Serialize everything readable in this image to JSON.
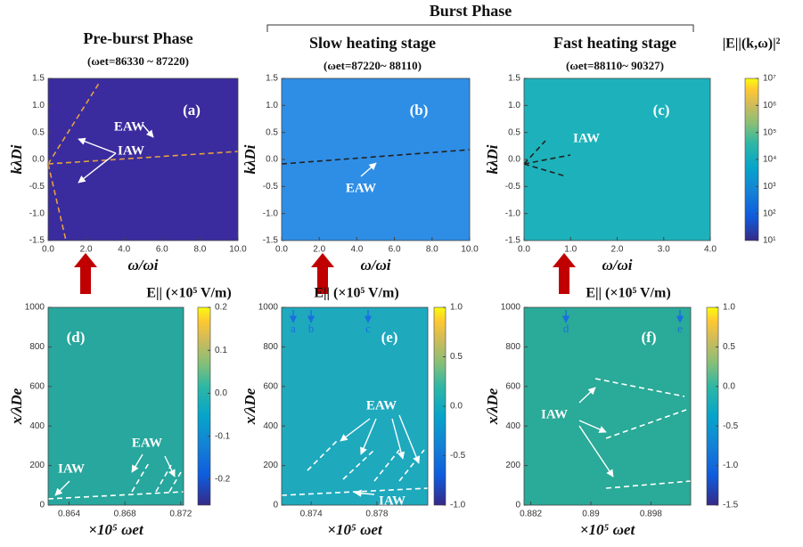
{
  "figure": {
    "group_title": "Burst Phase"
  },
  "chart_data": [
    {
      "type": "heatmap",
      "title": "Pre-burst Phase",
      "subtitle": "(ωet=86330 ~ 87220)",
      "panel_label": "(a)",
      "color": "#3a2c9e",
      "xlabel": "ω/ωi",
      "ylabel": "kλDi",
      "xlim": [
        0,
        10
      ],
      "xticks": [
        {
          "value": 0,
          "label": "0.0"
        },
        {
          "value": 2,
          "label": "2.0"
        },
        {
          "value": 4,
          "label": "4.0"
        },
        {
          "value": 6,
          "label": "6.0"
        },
        {
          "value": 8,
          "label": "8.0"
        },
        {
          "value": 10,
          "label": "10.0"
        }
      ],
      "ylim": [
        -1.5,
        1.5
      ],
      "yticks": [
        -1.5,
        {
          "value": -1,
          "label": "-1.0"
        },
        -0.5,
        {
          "value": 0,
          "label": "0.0"
        },
        0.5,
        {
          "value": 1,
          "label": "1.0"
        },
        1.5
      ],
      "annotations": [
        "EAW",
        "IAW"
      ]
    },
    {
      "type": "heatmap",
      "title": "Slow heating stage",
      "subtitle": "(ωet=87220~ 88110)",
      "panel_label": "(b)",
      "color": "#2e8ee6",
      "xlabel": "ω/ωi",
      "ylabel": "kλDi",
      "xlim": [
        0,
        10
      ],
      "xticks": [
        {
          "value": 0,
          "label": "0.0"
        },
        {
          "value": 2,
          "label": "2.0"
        },
        {
          "value": 4,
          "label": "4.0"
        },
        {
          "value": 6,
          "label": "6.0"
        },
        {
          "value": 8,
          "label": "8.0"
        },
        {
          "value": 10,
          "label": "10.0"
        }
      ],
      "ylim": [
        -1.5,
        1.5
      ],
      "yticks": [
        -1.5,
        {
          "value": -1,
          "label": "-1.0"
        },
        -0.5,
        {
          "value": 0,
          "label": "0.0"
        },
        0.5,
        {
          "value": 1,
          "label": "1.0"
        },
        1.5
      ],
      "annotations": [
        "EAW"
      ]
    },
    {
      "type": "heatmap",
      "title": "Fast heating stage",
      "subtitle": "(ωet=88110~ 90327)",
      "panel_label": "(c)",
      "color": "#1db2bb",
      "xlabel": "ω/ωi",
      "ylabel": "kλDi",
      "xlim": [
        0,
        4
      ],
      "xticks": [
        {
          "value": 0,
          "label": "0.0"
        },
        {
          "value": 1,
          "label": "1.0"
        },
        {
          "value": 2,
          "label": "2.0"
        },
        {
          "value": 3,
          "label": "3.0"
        },
        {
          "value": 4,
          "label": "4.0"
        }
      ],
      "ylim": [
        -1.5,
        1.5
      ],
      "yticks": [
        -1.5,
        {
          "value": -1,
          "label": "-1.0"
        },
        -0.5,
        {
          "value": 0,
          "label": "0.0"
        },
        0.5,
        {
          "value": 1,
          "label": "1.0"
        },
        1.5
      ],
      "annotations": [
        "IAW"
      ],
      "colorbar": {
        "label": "|E||(k,ω)|²",
        "log_scale": true,
        "lim": [
          10,
          10000000
        ],
        "ticks": [
          {
            "value": 10,
            "label": "10¹"
          },
          {
            "value": 100,
            "label": "10²"
          },
          {
            "value": 1000,
            "label": "10³"
          },
          {
            "value": 10000,
            "label": "10⁴"
          },
          {
            "value": 100000,
            "label": "10⁵"
          },
          {
            "value": 1000000,
            "label": "10⁶"
          },
          {
            "value": 10000000,
            "label": "10⁷"
          }
        ]
      }
    },
    {
      "type": "heatmap",
      "panel_label": "(d)",
      "color": "#27a79d",
      "xlabel": "×10⁵ ωet",
      "ylabel": "x/λDe",
      "xlim": [
        0.8625,
        0.8722
      ],
      "xticks": [
        0.864,
        0.868,
        0.872
      ],
      "ylim": [
        0,
        1000
      ],
      "yticks": [
        0,
        200,
        400,
        600,
        800,
        1000
      ],
      "annotations": [
        "EAW",
        "IAW"
      ],
      "colorbar": {
        "label": "E|| (×10⁵ V/m)",
        "log_scale": false,
        "lim": [
          -0.26,
          0.2
        ],
        "ticks": [
          -0.2,
          -0.1,
          {
            "value": 0,
            "label": "0.0"
          },
          0.1,
          0.2
        ]
      }
    },
    {
      "type": "heatmap",
      "panel_label": "(e)",
      "color": "#1ea9bd",
      "xlabel": "×10⁵ ωet",
      "ylabel": "x/λDe",
      "xlim": [
        0.8722,
        0.8811
      ],
      "xticks": [
        0.874,
        0.878
      ],
      "ylim": [
        0,
        1000
      ],
      "yticks": [
        0,
        200,
        400,
        600,
        800,
        1000
      ],
      "annotations": [
        "EAW",
        "IAW"
      ],
      "markers": [
        "a",
        "b",
        "c"
      ],
      "colorbar": {
        "label": "E|| (×10⁵ V/m)",
        "log_scale": false,
        "lim": [
          -1,
          1
        ],
        "ticks": [
          {
            "value": -1,
            "label": "-1.0"
          },
          -0.5,
          {
            "value": 0,
            "label": "0.0"
          },
          0.5,
          {
            "value": 1,
            "label": "1.0"
          }
        ]
      }
    },
    {
      "type": "heatmap",
      "panel_label": "(f)",
      "color": "#2aaa98",
      "xlabel": "×10⁵ ωet",
      "ylabel": "x/λDe",
      "xlim": [
        0.8811,
        0.9033
      ],
      "xticks": [
        0.882,
        0.89,
        0.898
      ],
      "ylim": [
        0,
        1000
      ],
      "yticks": [
        0,
        200,
        400,
        600,
        800,
        1000
      ],
      "annotations": [
        "IAW"
      ],
      "markers": [
        "d",
        "e"
      ],
      "colorbar": {
        "label": "E|| (×10⁵ V/m)",
        "log_scale": false,
        "lim": [
          -1.5,
          1
        ],
        "ticks": [
          -1.5,
          {
            "value": -1,
            "label": "-1.0"
          },
          -0.5,
          {
            "value": 0,
            "label": "0.0"
          },
          0.5,
          {
            "value": 1,
            "label": "1.0"
          }
        ]
      }
    }
  ]
}
